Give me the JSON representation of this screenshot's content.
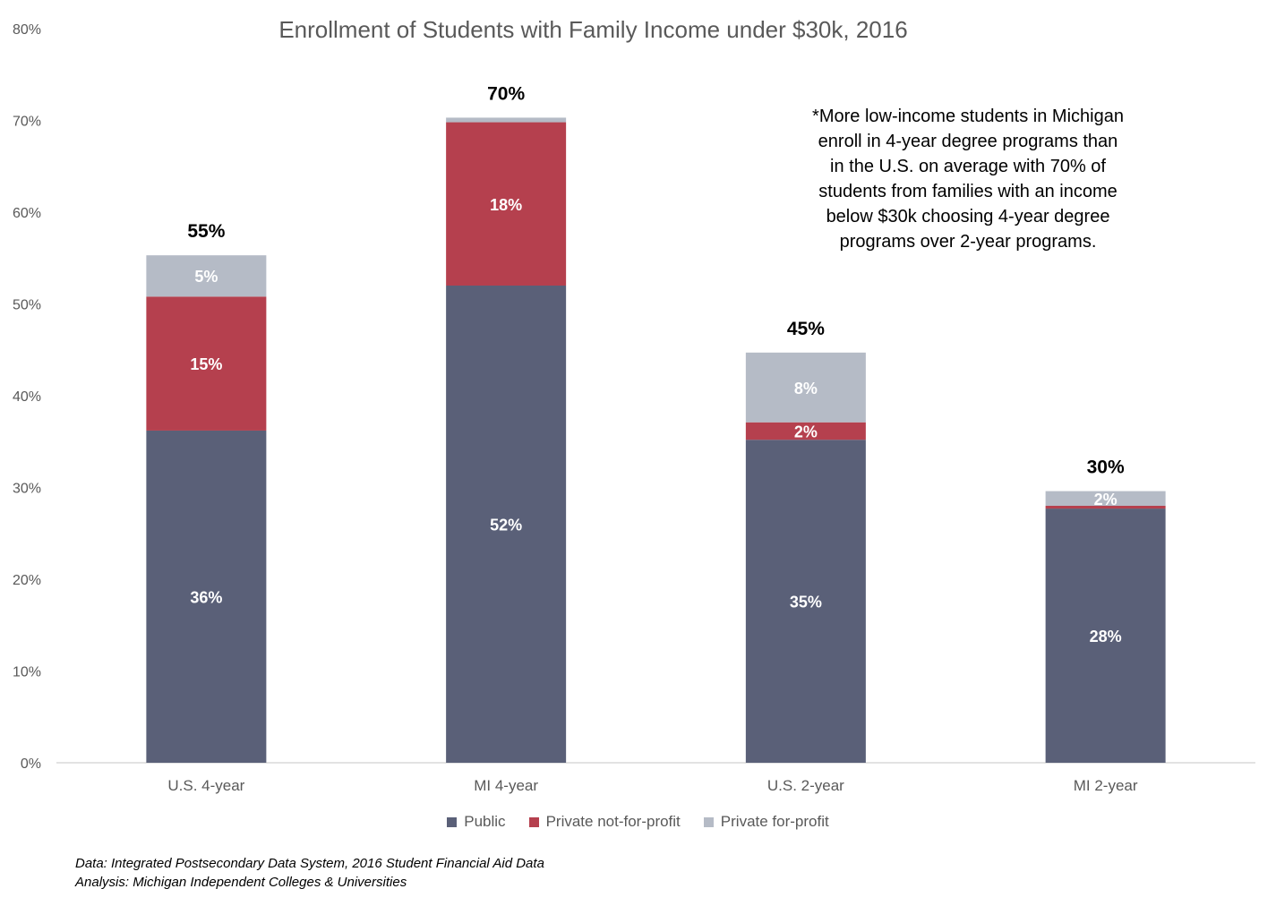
{
  "chart_data": {
    "type": "bar",
    "stacked": true,
    "title": "Enrollment of Students with Family Income under $30k, 2016",
    "categories": [
      "U.S. 4-year",
      "MI 4-year",
      "U.S. 2-year",
      "MI 2-year"
    ],
    "series": [
      {
        "name": "Public",
        "color": "#5a6078",
        "values": [
          36.2,
          52.0,
          35.2,
          27.7
        ],
        "labels": [
          "36%",
          "52%",
          "35%",
          "28%"
        ]
      },
      {
        "name": "Private not-for-profit",
        "color": "#b5404e",
        "values": [
          14.6,
          17.8,
          1.9,
          0.3
        ],
        "labels": [
          "15%",
          "18%",
          "2%",
          ""
        ]
      },
      {
        "name": "Private for-profit",
        "color": "#b5bbc6",
        "values": [
          4.5,
          0.5,
          7.6,
          1.6
        ],
        "labels": [
          "5%",
          "",
          "8%",
          "2%"
        ]
      }
    ],
    "totals": [
      "55%",
      "70%",
      "45%",
      "30%"
    ],
    "ylim": [
      0,
      80
    ],
    "yticks": [
      0,
      10,
      20,
      30,
      40,
      50,
      60,
      70,
      80
    ],
    "ytick_labels": [
      "0%",
      "10%",
      "20%",
      "30%",
      "40%",
      "50%",
      "60%",
      "70%",
      "80%"
    ],
    "grid": false,
    "legend": "bottom"
  },
  "annotation": "*More low-income students in Michigan enroll in 4-year degree programs than in the U.S. on average with 70% of students from families with an income below $30k choosing 4-year degree programs over 2-year programs.",
  "source_lines": [
    "Data: Integrated Postsecondary Data System, 2016 Student Financial Aid Data",
    "Analysis: Michigan Independent Colleges & Universities"
  ]
}
